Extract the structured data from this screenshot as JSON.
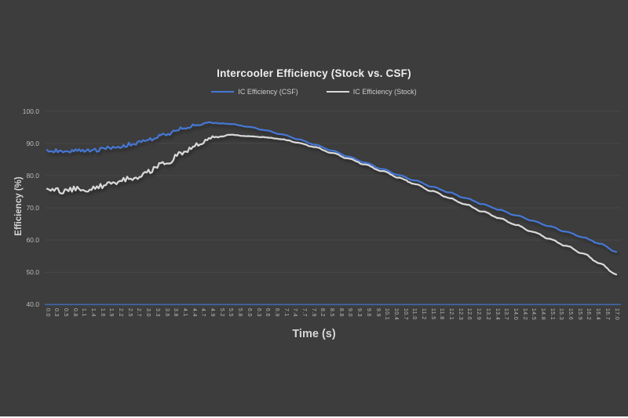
{
  "colors": {
    "background": "#3d3d3d",
    "title_text": "#ededed",
    "legend_text": "#cccccc",
    "axis_title_text": "#d6d6d6",
    "tick_text": "#b9b9b9",
    "grid_line": "rgba(255,255,255,0.06)",
    "axis_line": "#4267ad",
    "csf_line": "#4577d4",
    "stock_line": "#d9d9d9",
    "bottom_border": "#fdfdfd"
  },
  "chart_data": {
    "type": "line",
    "title": "Intercooler Efficiency (Stock vs. CSF)",
    "xlabel": "Time (s)",
    "ylabel": "Efficiency (%)",
    "legend_position": "top",
    "grid": "horizontal-faint",
    "ylim": [
      40,
      100
    ],
    "y_tick_step": 10,
    "y_tick_labels": [
      "100.0",
      "90.0",
      "80.0",
      "70.0",
      "60.0",
      "50.0",
      "40.0"
    ],
    "x_start": 0,
    "x_end": 17,
    "x_sample_step": 0.5,
    "x_tick_labels": [
      "0.0",
      "0.3",
      "0.5",
      "0.8",
      "1.1",
      "1.4",
      "1.6",
      "1.9",
      "2.2",
      "2.5",
      "2.7",
      "3.0",
      "3.3",
      "3.6",
      "3.8",
      "4.1",
      "4.4",
      "4.7",
      "4.9",
      "5.2",
      "5.5",
      "5.8",
      "6.0",
      "6.3",
      "6.6",
      "6.9",
      "7.1",
      "7.4",
      "7.7",
      "7.9",
      "8.2",
      "8.5",
      "8.8",
      "9.0",
      "9.3",
      "9.6",
      "9.9",
      "10.1",
      "10.4",
      "10.7",
      "11.0",
      "11.2",
      "11.5",
      "11.8",
      "12.1",
      "12.3",
      "12.6",
      "12.9",
      "13.2",
      "13.4",
      "13.7",
      "14.0",
      "14.2",
      "14.5",
      "14.8",
      "15.1",
      "15.3",
      "15.6",
      "15.9",
      "16.2",
      "16.4",
      "16.7",
      "17.0"
    ],
    "series": [
      {
        "name": "IC Efficiency (CSF)",
        "color": "#4577d4",
        "noise_amplitude": 0.55,
        "values": [
          87.6,
          87.5,
          87.7,
          88.0,
          88.6,
          89.6,
          91.0,
          92.7,
          94.4,
          95.9,
          96.4,
          96.0,
          95.2,
          94.1,
          92.8,
          91.3,
          89.6,
          87.8,
          85.9,
          84.0,
          82.1,
          80.2,
          78.4,
          76.6,
          74.8,
          73.0,
          71.2,
          69.4,
          67.7,
          66.0,
          64.3,
          62.6,
          60.9,
          58.9,
          56.4
        ]
      },
      {
        "name": "IC Efficiency (Stock)",
        "color": "#d9d9d9",
        "noise_amplitude": 0.8,
        "values": [
          75.6,
          75.4,
          75.8,
          76.4,
          77.5,
          79.0,
          81.0,
          83.6,
          86.6,
          89.8,
          92.0,
          92.6,
          92.3,
          91.9,
          91.3,
          90.2,
          88.8,
          87.1,
          85.3,
          83.4,
          81.4,
          79.4,
          77.3,
          75.2,
          73.1,
          71.0,
          68.9,
          66.8,
          64.7,
          62.6,
          60.4,
          58.2,
          55.9,
          52.8,
          49.4
        ]
      }
    ]
  }
}
